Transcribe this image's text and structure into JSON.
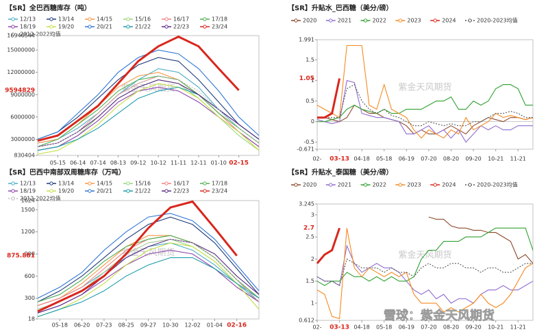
{
  "chart_data": [
    {
      "type": "line",
      "title": "【SR】全巴西糖库存（吨）",
      "watermark": "紫金天风期货",
      "categories": [
        null,
        "05-15",
        "06-14",
        "07-14",
        "08-13",
        "09-12",
        "10-12",
        "11-11",
        "12-11",
        "01-10",
        "02-15",
        null
      ],
      "highlight_index": 10,
      "highlight_value": 9594829,
      "ylim": [
        830404,
        16946544
      ],
      "yticks": [
        830404,
        3000000,
        6000000,
        9000000,
        12000000,
        15000000,
        16946544
      ],
      "series": [
        {
          "name": "12/13",
          "color": "#4bacc6",
          "values": [
            2500000,
            3000000,
            4500000,
            6500000,
            9000000,
            11000000,
            12500000,
            12000000,
            10000000,
            7000000,
            4500000,
            2500000
          ]
        },
        {
          "name": "13/14",
          "color": "#1f3a7a",
          "values": [
            3000000,
            4000000,
            6000000,
            8500000,
            11000000,
            13000000,
            14000000,
            13500000,
            11000000,
            8000000,
            5000000,
            3000000
          ]
        },
        {
          "name": "14/15",
          "color": "#f79646",
          "values": [
            2500000,
            3000000,
            5000000,
            7500000,
            10000000,
            11500000,
            12000000,
            11000000,
            9000000,
            6500000,
            4000000,
            2000000
          ]
        },
        {
          "name": "15/16",
          "color": "#9bd37a",
          "values": [
            1500000,
            2000000,
            3500000,
            6000000,
            8500000,
            10000000,
            11000000,
            10500000,
            8500000,
            6000000,
            3500000,
            1500000
          ]
        },
        {
          "name": "16/17",
          "color": "#f08080",
          "values": [
            2000000,
            2500000,
            4000000,
            6500000,
            9000000,
            10500000,
            11500000,
            11000000,
            9000000,
            6500000,
            4000000,
            2000000
          ]
        },
        {
          "name": "17/18",
          "color": "#4caf50",
          "values": [
            2000000,
            3000000,
            5000000,
            7000000,
            9500000,
            11000000,
            11500000,
            11000000,
            9000000,
            6500000,
            4500000,
            2500000
          ]
        },
        {
          "name": "18/19",
          "color": "#8e44ad",
          "values": [
            1500000,
            2000000,
            3500000,
            5500000,
            8000000,
            9500000,
            10000000,
            9500000,
            8000000,
            6000000,
            4000000,
            2000000
          ]
        },
        {
          "name": "19/20",
          "color": "#c5e04a",
          "values": [
            1000000,
            1500000,
            3000000,
            5000000,
            7500000,
            9500000,
            10500000,
            10000000,
            8500000,
            6000000,
            4000000,
            1500000
          ]
        },
        {
          "name": "20/21",
          "color": "#2e75d6",
          "values": [
            3000000,
            4000000,
            6500000,
            9000000,
            12000000,
            14000000,
            15000000,
            14500000,
            12500000,
            9500000,
            6000000,
            3500000
          ]
        },
        {
          "name": "21/22",
          "color": "#1b9aaa",
          "values": [
            1500000,
            2000000,
            3000000,
            4500000,
            6500000,
            8500000,
            9500000,
            10000000,
            9000000,
            7000000,
            5000000,
            3000000
          ]
        },
        {
          "name": "22/23",
          "color": "#5b2a86",
          "values": [
            2000000,
            2500000,
            4000000,
            6000000,
            8500000,
            10000000,
            11000000,
            10500000,
            9000000,
            7000000,
            5000000,
            3000000
          ]
        },
        {
          "name": "23/24",
          "color": "#d9261c",
          "width": 3,
          "values": [
            2800000,
            3500000,
            5500000,
            7500000,
            10500000,
            13500000,
            15500000,
            16800000,
            15500000,
            12500000,
            9594829,
            null
          ]
        },
        {
          "name": "2012-2022均值",
          "color": "#bbbbbb",
          "dashed": true,
          "values": [
            2000000,
            2500000,
            4000000,
            6500000,
            9000000,
            10500000,
            11500000,
            11000000,
            9500000,
            7000000,
            4500000,
            2500000
          ]
        }
      ]
    },
    {
      "type": "line",
      "title": "【SR】升贴水_巴西糖（美分/磅）",
      "watermark": "紫金天风期货",
      "categories": [
        "02-",
        null,
        null,
        "03-13",
        null,
        null,
        "04-18",
        null,
        null,
        "05-18",
        null,
        null,
        "06-19",
        null,
        null,
        "07-20",
        null,
        null,
        "08-20",
        null,
        null,
        "09-20",
        null,
        null,
        "10-21",
        null,
        null,
        "11-21",
        null,
        null
      ],
      "highlight_index": 3,
      "highlight_value": 1.05,
      "ylim": [
        -0.671,
        1.991
      ],
      "yticks": [
        -0.671,
        -0.5,
        0,
        0.5,
        1,
        1.5,
        1.991
      ],
      "series": [
        {
          "name": "2020",
          "color": "#8b4a2b",
          "values": [
            0.1,
            0.1,
            0.05,
            0,
            0.1,
            0.4,
            0.3,
            0.2,
            0.2,
            0.1,
            0.05,
            0,
            -0.1,
            -0.3,
            -0.2,
            -0.3,
            -0.3,
            -0.2,
            -0.1,
            -0.2,
            -0.3,
            -0.1,
            0,
            0.1,
            0.05,
            0,
            0.1,
            0.1,
            0.05,
            0.1
          ]
        },
        {
          "name": "2021",
          "color": "#8e6bd1",
          "values": [
            0.05,
            0,
            -0.05,
            0,
            1,
            0.95,
            0.2,
            0.15,
            0.1,
            0.1,
            0.05,
            0,
            -0.3,
            -0.3,
            -0.2,
            -0.1,
            -0.3,
            -0.2,
            -0.4,
            -0.2,
            -0.5,
            -0.3,
            -0.1,
            -0.2,
            -0.1,
            -0.2,
            -0.2,
            -0.1,
            -0.1,
            -0.1
          ]
        },
        {
          "name": "2022",
          "color": "#2ea02e",
          "values": [
            0,
            0,
            0.05,
            0.1,
            0.3,
            0.4,
            0.3,
            0.25,
            0.2,
            0.3,
            0.2,
            0.2,
            0.3,
            0.3,
            0.3,
            0.4,
            0.5,
            0.5,
            0.6,
            0.3,
            0.3,
            0.5,
            0.4,
            0.5,
            0.8,
            0.9,
            0.9,
            0.8,
            0.4,
            0.4
          ]
        },
        {
          "name": "2023",
          "color": "#f5891f",
          "values": [
            0.4,
            0.3,
            0.2,
            0.1,
            1.85,
            1.85,
            1.85,
            0.4,
            0.3,
            0.9,
            0.3,
            0.2,
            0.1,
            -0.2,
            -0.4,
            -0.2,
            -0.3,
            -0.4,
            -0.2,
            -0.3,
            0.1,
            -0.2,
            -0.1,
            0,
            0.2,
            0.1,
            0.15,
            0.1,
            0.05,
            0.1
          ]
        },
        {
          "name": "2024",
          "color": "#d9261c",
          "width": 3,
          "values": [
            0.1,
            0.1,
            0.2,
            1.05,
            null,
            null,
            null,
            null,
            null,
            null,
            null,
            null,
            null,
            null,
            null,
            null,
            null,
            null,
            null,
            null,
            null,
            null,
            null,
            null,
            null,
            null,
            null,
            null,
            null,
            null
          ]
        },
        {
          "name": "2020-2023均值",
          "color": "#555555",
          "dashed": true,
          "values": [
            0.1,
            0.1,
            0.1,
            0.1,
            0.8,
            0.9,
            0.5,
            0.3,
            0.2,
            0.3,
            0.15,
            0.1,
            0,
            -0.1,
            -0.1,
            0,
            -0.05,
            -0.1,
            -0.05,
            -0.1,
            -0.1,
            0,
            0,
            0.1,
            0.2,
            0.2,
            0.25,
            0.2,
            0.1,
            0.1
          ]
        }
      ]
    },
    {
      "type": "line",
      "title": "【SR】巴西中南部双周糖库存（万吨）",
      "watermark": "紫金天风期货",
      "categories": [
        null,
        "05-18",
        "06-20",
        "07-23",
        "08-25",
        "09-27",
        "10-30",
        "12-02",
        "01-04",
        "02-16",
        null
      ],
      "highlight_index": 9,
      "highlight_value": 875.881,
      "ylim": [
        18,
        1624
      ],
      "yticks": [
        18,
        300,
        600,
        900,
        1200,
        1500,
        1624
      ],
      "series": [
        {
          "name": "12/13",
          "color": "#4bacc6",
          "values": [
            200,
            300,
            450,
            650,
            850,
            1000,
            1050,
            950,
            750,
            500,
            250
          ]
        },
        {
          "name": "13/14",
          "color": "#1f3a7a",
          "values": [
            250,
            400,
            600,
            850,
            1100,
            1300,
            1400,
            1300,
            1050,
            700,
            350
          ]
        },
        {
          "name": "14/15",
          "color": "#f79646",
          "values": [
            200,
            300,
            500,
            750,
            1000,
            1150,
            1150,
            1050,
            850,
            550,
            300
          ]
        },
        {
          "name": "15/16",
          "color": "#9bd37a",
          "values": [
            150,
            250,
            400,
            650,
            900,
            1050,
            1100,
            1000,
            800,
            500,
            150
          ]
        },
        {
          "name": "16/17",
          "color": "#f08080",
          "values": [
            200,
            300,
            450,
            700,
            950,
            1100,
            1150,
            1050,
            850,
            550,
            250
          ]
        },
        {
          "name": "17/18",
          "color": "#4caf50",
          "values": [
            250,
            350,
            550,
            800,
            1000,
            1100,
            1150,
            1050,
            850,
            550,
            300
          ]
        },
        {
          "name": "18/19",
          "color": "#8e44ad",
          "values": [
            100,
            200,
            350,
            550,
            750,
            900,
            950,
            900,
            700,
            450,
            250
          ]
        },
        {
          "name": "19/20",
          "color": "#c5e04a",
          "values": [
            50,
            150,
            300,
            500,
            750,
            950,
            1050,
            1000,
            800,
            500,
            150
          ]
        },
        {
          "name": "20/21",
          "color": "#2e75d6",
          "values": [
            300,
            450,
            650,
            950,
            1200,
            1400,
            1450,
            1350,
            1100,
            750,
            400
          ]
        },
        {
          "name": "21/22",
          "color": "#1b9aaa",
          "values": [
            50,
            150,
            250,
            400,
            600,
            750,
            850,
            850,
            700,
            500,
            300
          ]
        },
        {
          "name": "22/23",
          "color": "#5b2a86",
          "values": [
            100,
            200,
            350,
            600,
            850,
            1000,
            1100,
            1050,
            900,
            600,
            350
          ]
        },
        {
          "name": "23/24",
          "color": "#d9261c",
          "width": 3,
          "values": [
            120,
            260,
            400,
            600,
            900,
            1250,
            1530,
            1610,
            1250,
            875.881,
            null
          ]
        },
        {
          "name": "2012-2022均值",
          "color": "#bbbbbb",
          "dashed": true,
          "values": [
            150,
            250,
            400,
            650,
            900,
            1050,
            1100,
            1050,
            850,
            550,
            250
          ]
        }
      ]
    },
    {
      "type": "line",
      "title": "【SR】升贴水_泰国糖（美分/磅）",
      "watermark": "紫金天风期货",
      "categories": [
        "02-",
        null,
        null,
        "03-13",
        null,
        null,
        "04-18",
        null,
        null,
        "05-18",
        null,
        null,
        "06-19",
        null,
        null,
        "07-20",
        null,
        null,
        "08-20",
        null,
        null,
        "09-20",
        null,
        null,
        "10-21",
        null,
        null,
        "11-21",
        null,
        null
      ],
      "highlight_index": 3,
      "highlight_value": 2.7,
      "ylim": [
        0.612,
        3.245
      ],
      "yticks": [
        0.612,
        1,
        1.5,
        2,
        2.5,
        3,
        3.245
      ],
      "series": [
        {
          "name": "2020",
          "color": "#8b4a2b",
          "values": [
            null,
            null,
            null,
            null,
            null,
            null,
            null,
            null,
            null,
            null,
            null,
            null,
            null,
            null,
            null,
            2.95,
            2.9,
            2.9,
            2.75,
            2.7,
            2.7,
            2.65,
            2.65,
            2.6,
            2.6,
            2.5,
            2.4,
            2,
            2.1,
            1.9
          ]
        },
        {
          "name": "2021",
          "color": "#8e6bd1",
          "values": [
            1.6,
            1.5,
            1.5,
            1.4,
            2.3,
            1.9,
            1.7,
            1.8,
            1.9,
            1.8,
            1.8,
            1.7,
            1.5,
            1.3,
            1.2,
            1.3,
            1.1,
            1.2,
            1,
            1.1,
            1.1,
            1,
            1.2,
            1.3,
            1.3,
            1.4,
            1.3,
            1.3,
            1.4,
            1.5
          ]
        },
        {
          "name": "2022",
          "color": "#2ea02e",
          "values": [
            1.5,
            1.4,
            1.5,
            1.5,
            1.7,
            1.6,
            1.6,
            1.5,
            1.6,
            1.5,
            1.6,
            1.5,
            1.5,
            1.6,
            2,
            2.2,
            2.2,
            2.4,
            2.4,
            2.4,
            2.5,
            2.5,
            2.5,
            2.6,
            2.7,
            2.7,
            2.7,
            2.7,
            2.7,
            2.2
          ]
        },
        {
          "name": "2023",
          "color": "#f5891f",
          "values": [
            1.3,
            1.2,
            0.7,
            0.65,
            2.7,
            1.8,
            1.6,
            1.8,
            1.7,
            1.6,
            1.7,
            1.6,
            1.7,
            1.2,
            1,
            1,
            1,
            0.8,
            0.9,
            0.8,
            0.9,
            1,
            1.2,
            1,
            0.9,
            1,
            1.2,
            1.5,
            1.8,
            1.9
          ]
        },
        {
          "name": "2024",
          "color": "#d9261c",
          "width": 3,
          "values": [
            1.9,
            2.1,
            2.2,
            2.7,
            null,
            null,
            null,
            null,
            null,
            null,
            null,
            null,
            null,
            null,
            null,
            null,
            null,
            null,
            null,
            null,
            null,
            null,
            null,
            null,
            null,
            null,
            null,
            null,
            null,
            null
          ]
        },
        {
          "name": "2020-2023均值",
          "color": "#555555",
          "dashed": true,
          "values": [
            1.6,
            1.5,
            1.5,
            1.4,
            2,
            1.9,
            1.8,
            1.8,
            1.8,
            1.7,
            1.8,
            1.7,
            1.7,
            1.6,
            1.8,
            1.9,
            1.8,
            1.8,
            1.9,
            1.9,
            1.8,
            1.8,
            1.7,
            1.8,
            1.8,
            1.7,
            1.7,
            1.8,
            1.9,
            1.9
          ]
        }
      ]
    }
  ],
  "footer_watermark": "雪球：紫金天风期货"
}
